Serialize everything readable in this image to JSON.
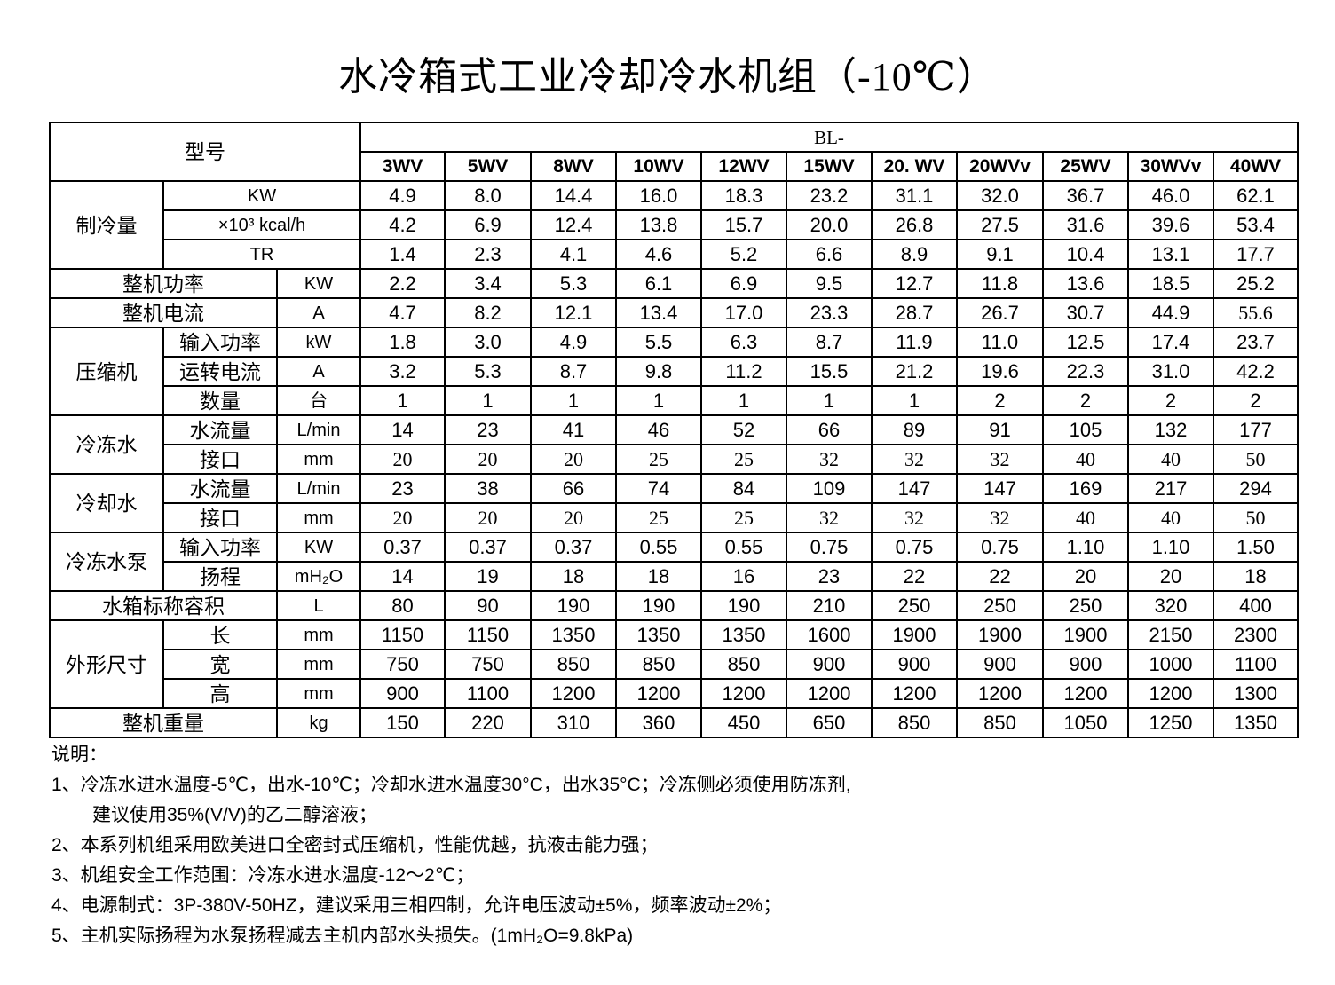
{
  "title": "水冷箱式工业冷却冷水机组（-10℃）",
  "header": {
    "model_label": "型号",
    "series_prefix": "BL-",
    "models": [
      "3WV",
      "5WV",
      "8WV",
      "10WV",
      "12WV",
      "15WV",
      "20. WV",
      "20WVv",
      "25WV",
      "30WVv",
      "40WV"
    ]
  },
  "sections": [
    {
      "group": "制冷量",
      "rows": [
        {
          "label": "KW",
          "values": [
            "4.9",
            "8.0",
            "14.4",
            "16.0",
            "18.3",
            "23.2",
            "31.1",
            "32.0",
            "36.7",
            "46.0",
            "62.1"
          ]
        },
        {
          "label": "×10³ kcal/h",
          "values": [
            "4.2",
            "6.9",
            "12.4",
            "13.8",
            "15.7",
            "20.0",
            "26.8",
            "27.5",
            "31.6",
            "39.6",
            "53.4"
          ]
        },
        {
          "label": "TR",
          "values": [
            "1.4",
            "2.3",
            "4.1",
            "4.6",
            "5.2",
            "6.6",
            "8.9",
            "9.1",
            "10.4",
            "13.1",
            "17.7"
          ]
        }
      ]
    },
    {
      "group": "",
      "rows": [
        {
          "label": "整机功率",
          "unit": "KW",
          "values": [
            "2.2",
            "3.4",
            "5.3",
            "6.1",
            "6.9",
            "9.5",
            "12.7",
            "11.8",
            "13.6",
            "18.5",
            "25.2"
          ]
        }
      ]
    },
    {
      "group": "",
      "rows": [
        {
          "label": "整机电流",
          "unit": "A",
          "values": [
            "4.7",
            "8.2",
            "12.1",
            "13.4",
            "17.0",
            "23.3",
            "28.7",
            "26.7",
            "30.7",
            "44.9",
            "55.6"
          ]
        }
      ]
    },
    {
      "group": "压缩机",
      "rows": [
        {
          "label": "输入功率",
          "unit": "kW",
          "values": [
            "1.8",
            "3.0",
            "4.9",
            "5.5",
            "6.3",
            "8.7",
            "11.9",
            "11.0",
            "12.5",
            "17.4",
            "23.7"
          ]
        },
        {
          "label": "运转电流",
          "unit": "A",
          "values": [
            "3.2",
            "5.3",
            "8.7",
            "9.8",
            "11.2",
            "15.5",
            "21.2",
            "19.6",
            "22.3",
            "31.0",
            "42.2"
          ]
        },
        {
          "label": "数量",
          "unit": "台",
          "values": [
            "1",
            "1",
            "1",
            "1",
            "1",
            "1",
            "1",
            "2",
            "2",
            "2",
            "2"
          ]
        }
      ]
    },
    {
      "group": "冷冻水",
      "rows": [
        {
          "label": "水流量",
          "unit": "L/min",
          "values": [
            "14",
            "23",
            "41",
            "46",
            "52",
            "66",
            "89",
            "91",
            "105",
            "132",
            "177"
          ]
        },
        {
          "label": "接口",
          "unit": "mm",
          "serif": true,
          "values": [
            "20",
            "20",
            "20",
            "25",
            "25",
            "32",
            "32",
            "32",
            "40",
            "40",
            "50"
          ]
        }
      ]
    },
    {
      "group": "冷却水",
      "rows": [
        {
          "label": "水流量",
          "unit": "L/min",
          "values": [
            "23",
            "38",
            "66",
            "74",
            "84",
            "109",
            "147",
            "147",
            "169",
            "217",
            "294"
          ]
        },
        {
          "label": "接口",
          "unit": "mm",
          "serif": true,
          "values": [
            "20",
            "20",
            "20",
            "25",
            "25",
            "32",
            "32",
            "32",
            "40",
            "40",
            "50"
          ]
        }
      ]
    },
    {
      "group": "冷冻水泵",
      "rows": [
        {
          "label": "输入功率",
          "unit": "KW",
          "values": [
            "0.37",
            "0.37",
            "0.37",
            "0.55",
            "0.55",
            "0.75",
            "0.75",
            "0.75",
            "1.10",
            "1.10",
            "1.50"
          ]
        },
        {
          "label": "扬程",
          "unit": "mH₂O",
          "values": [
            "14",
            "19",
            "18",
            "18",
            "16",
            "23",
            "22",
            "22",
            "20",
            "20",
            "18"
          ]
        }
      ]
    },
    {
      "group": "",
      "rows": [
        {
          "label": "水箱标称容积",
          "unit": "L",
          "values": [
            "80",
            "90",
            "190",
            "190",
            "190",
            "210",
            "250",
            "250",
            "250",
            "320",
            "400"
          ]
        }
      ]
    },
    {
      "group": "外形尺寸",
      "rows": [
        {
          "label": "长",
          "unit": "mm",
          "values": [
            "1150",
            "1150",
            "1350",
            "1350",
            "1350",
            "1600",
            "1900",
            "1900",
            "1900",
            "2150",
            "2300"
          ]
        },
        {
          "label": "宽",
          "unit": "mm",
          "values": [
            "750",
            "750",
            "850",
            "850",
            "850",
            "900",
            "900",
            "900",
            "900",
            "1000",
            "1100"
          ]
        },
        {
          "label": "高",
          "unit": "mm",
          "values": [
            "900",
            "1100",
            "1200",
            "1200",
            "1200",
            "1200",
            "1200",
            "1200",
            "1200",
            "1200",
            "1300"
          ]
        }
      ]
    },
    {
      "group": "",
      "rows": [
        {
          "label": "整机重量",
          "unit": "kg",
          "values": [
            "150",
            "220",
            "310",
            "360",
            "450",
            "650",
            "850",
            "850",
            "1050",
            "1250",
            "1350"
          ]
        }
      ]
    }
  ],
  "notes": {
    "heading": "说明：",
    "items": [
      "1、冷冻水进水温度-5℃，出水-10℃；冷却水进水温度30°C，出水35°C；冷冻侧必须使用防冻剂,",
      "建议使用35%(V/V)的乙二醇溶液；",
      "2、本系列机组采用欧美进口全密封式压缩机，性能优越，抗液击能力强；",
      "3、机组安全工作范围：冷冻水进水温度-12～2℃；",
      "4、电源制式：3P-380V-50HZ，建议采用三相四制，允许电压波动±5%，频率波动±2%；",
      "5、主机实际扬程为水泵扬程减去主机内部水头损失。(1mH₂O=9.8kPa)"
    ]
  }
}
